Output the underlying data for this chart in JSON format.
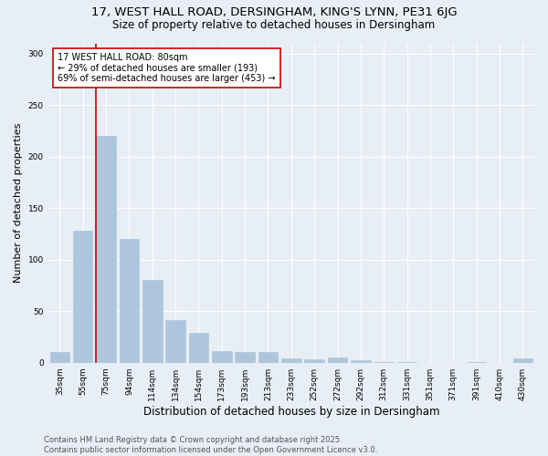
{
  "title1": "17, WEST HALL ROAD, DERSINGHAM, KING'S LYNN, PE31 6JG",
  "title2": "Size of property relative to detached houses in Dersingham",
  "xlabel": "Distribution of detached houses by size in Dersingham",
  "ylabel": "Number of detached properties",
  "categories": [
    "35sqm",
    "55sqm",
    "75sqm",
    "94sqm",
    "114sqm",
    "134sqm",
    "154sqm",
    "173sqm",
    "193sqm",
    "213sqm",
    "233sqm",
    "252sqm",
    "272sqm",
    "292sqm",
    "312sqm",
    "331sqm",
    "351sqm",
    "371sqm",
    "391sqm",
    "410sqm",
    "430sqm"
  ],
  "values": [
    10,
    128,
    220,
    120,
    80,
    41,
    29,
    11,
    10,
    10,
    4,
    3,
    5,
    2,
    1,
    1,
    0,
    0,
    1,
    0,
    4
  ],
  "bar_color": "#aec6dc",
  "vline_index": 2,
  "vline_color": "#cc0000",
  "annotation_text_line1": "17 WEST HALL ROAD: 80sqm",
  "annotation_text_line2": "← 29% of detached houses are smaller (193)",
  "annotation_text_line3": "69% of semi-detached houses are larger (453) →",
  "annotation_box_facecolor": "#ffffff",
  "annotation_box_edgecolor": "#cc0000",
  "ylim": [
    0,
    310
  ],
  "yticks": [
    0,
    50,
    100,
    150,
    200,
    250,
    300
  ],
  "bg_color": "#e8eef5",
  "grid_color": "#ffffff",
  "footer_line1": "Contains HM Land Registry data © Crown copyright and database right 2025.",
  "footer_line2": "Contains public sector information licensed under the Open Government Licence v3.0.",
  "title1_fontsize": 9.5,
  "title2_fontsize": 8.5,
  "xlabel_fontsize": 8.5,
  "ylabel_fontsize": 8,
  "tick_fontsize": 6.5,
  "annotation_fontsize": 7,
  "footer_fontsize": 6
}
